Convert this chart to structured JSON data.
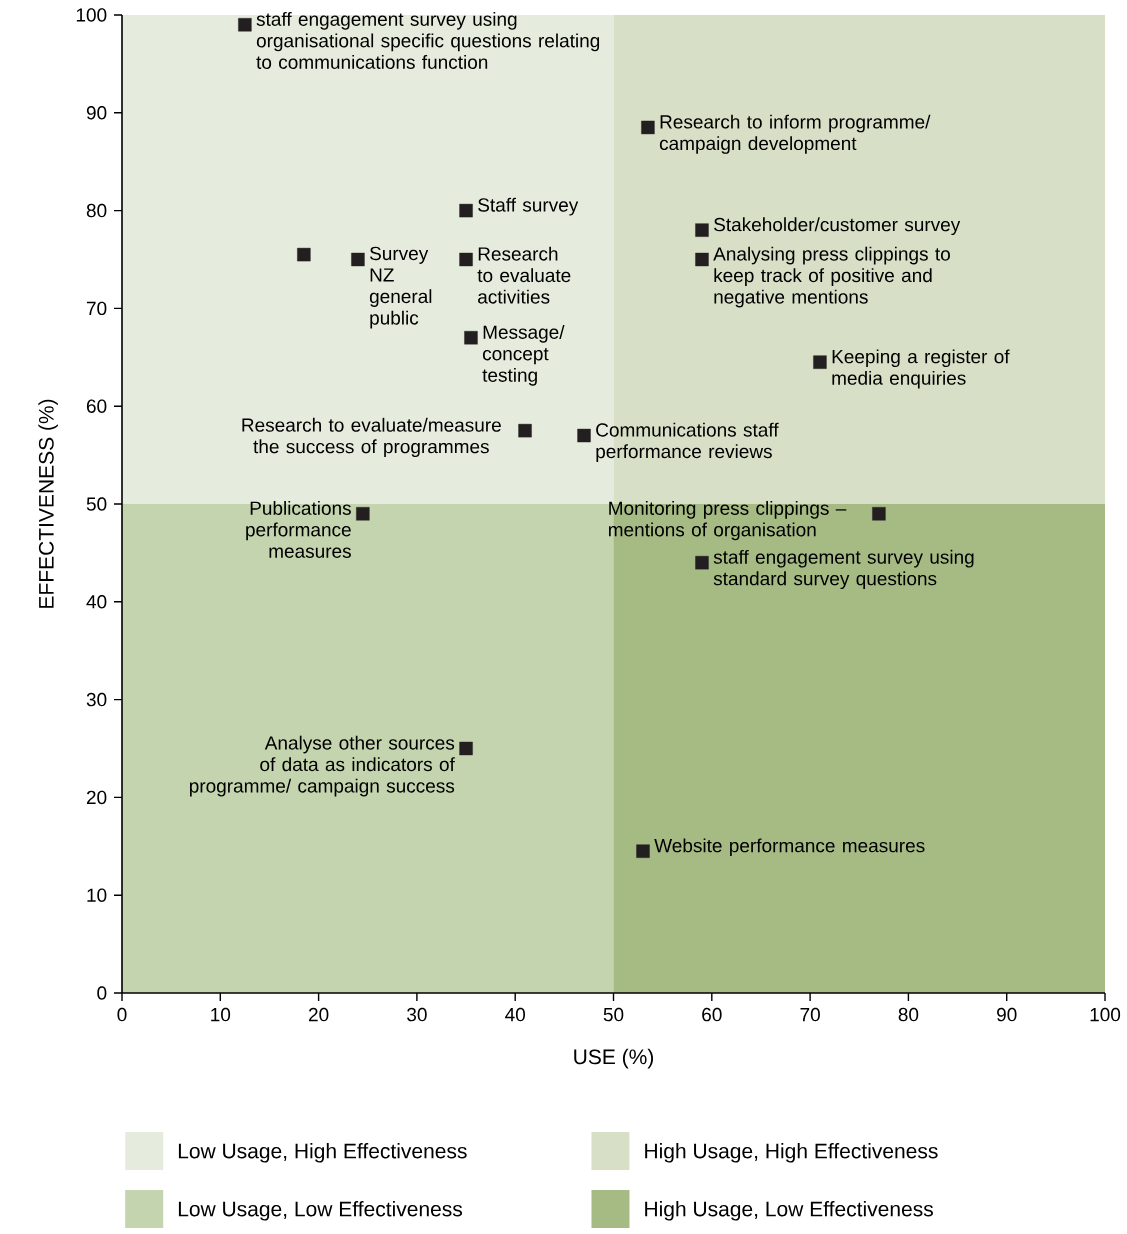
{
  "chart_data": {
    "type": "scatter",
    "xlabel": "USE (%)",
    "ylabel": "EFFECTIVENESS (%)",
    "xlim": [
      0,
      100
    ],
    "ylim": [
      0,
      100
    ],
    "xticks": [
      0,
      10,
      20,
      30,
      40,
      50,
      60,
      70,
      80,
      90,
      100
    ],
    "yticks": [
      0,
      10,
      20,
      30,
      40,
      50,
      60,
      70,
      80,
      90,
      100
    ],
    "grid": false,
    "legend": "bottom",
    "series": [
      {
        "type": "area",
        "name": "Low Usage, High Effectiveness",
        "color": "#e6ecdd",
        "x": [
          0,
          50
        ],
        "values": [
          100,
          100
        ]
      },
      {
        "type": "area",
        "name": "High Usage, High Effectiveness",
        "color": "#d7e0c6",
        "x": [
          50,
          100
        ],
        "values": [
          100,
          100
        ]
      },
      {
        "type": "area",
        "name": "Low Usage, Low Effectiveness",
        "color": "#c4d4ae",
        "x": [
          0,
          50
        ],
        "values": [
          50,
          50
        ]
      },
      {
        "type": "area",
        "name": "High Usage, Low Effectiveness",
        "color": "#a6bb83",
        "x": [
          50,
          100
        ],
        "values": [
          50,
          50
        ]
      },
      {
        "color": "#231f20",
        "marker": "square",
        "x": [
          12.5,
          53.5,
          35,
          59,
          18.5,
          24,
          35,
          59,
          35.5,
          71,
          41,
          47,
          24.5,
          77,
          59,
          35,
          53
        ],
        "values": [
          99,
          88.5,
          80,
          78,
          75.5,
          75,
          75,
          75,
          67,
          64.5,
          57.5,
          57,
          49,
          49,
          44,
          25,
          14.5
        ]
      }
    ],
    "annotations": [
      {
        "text": "staff engagement survey using organisational specific questions relating to communications function",
        "x": 12.5,
        "y": 99
      },
      {
        "text": "Research to inform programme/ campaign development",
        "x": 53.5,
        "y": 88.5
      },
      {
        "text": "Staff survey",
        "x": 35,
        "y": 80
      },
      {
        "text": "Stakeholder/customer survey",
        "x": 59,
        "y": 78
      },
      {
        "text": "Survey NZ general public",
        "x": 24,
        "y": 75
      },
      {
        "text": "Research to evaluate activities",
        "x": 35,
        "y": 75
      },
      {
        "text": "Analysing press clippings to keep track of positive and negative mentions",
        "x": 59,
        "y": 75
      },
      {
        "text": "Message/ concept testing",
        "x": 35.5,
        "y": 67
      },
      {
        "text": "Keeping a register of media enquiries",
        "x": 71,
        "y": 64.5
      },
      {
        "text": "Research to evaluate/measure the success of programmes",
        "x": 41,
        "y": 57.5
      },
      {
        "text": "Communications staff performance reviews",
        "x": 47,
        "y": 57
      },
      {
        "text": "Publications performance measures",
        "x": 24.5,
        "y": 49
      },
      {
        "text": "Monitoring press clippings – mentions of organisation",
        "x": 77,
        "y": 49
      },
      {
        "text": "staff engagement survey using standard survey questions",
        "x": 59,
        "y": 44
      },
      {
        "text": "Analyse other sources of data as indicators of programme/ campaign success",
        "x": 35,
        "y": 25
      },
      {
        "text": "Website performance measures",
        "x": 53,
        "y": 14.5
      }
    ]
  }
}
